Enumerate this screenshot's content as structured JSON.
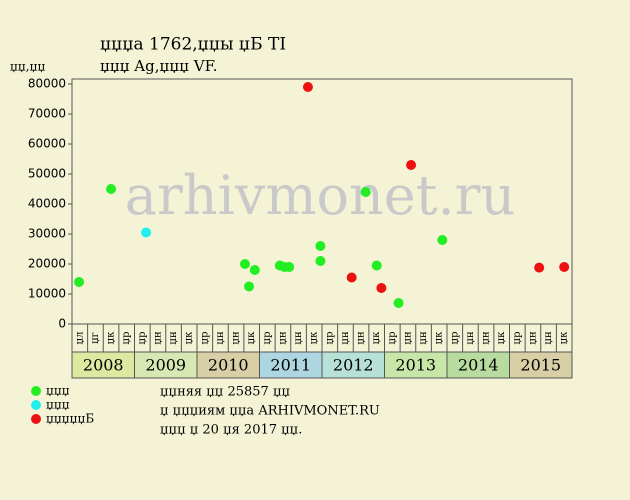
{
  "chart_data": {
    "type": "scatter",
    "title": "џџџа 1762,џџы џБ TI",
    "subtitle": "џџџ Ag,џџџ VF.",
    "y_label": "џџ,џџ",
    "watermark": "arhivmonet.ru",
    "ylim": [
      0,
      80000
    ],
    "yticks": [
      0,
      10000,
      20000,
      30000,
      40000,
      50000,
      60000,
      70000,
      80000
    ],
    "xlim": [
      0,
      32
    ],
    "quarters": [
      "џл",
      "џг",
      "џк",
      "џр",
      "џр",
      "џн",
      "џн",
      "џк",
      "џр",
      "џн",
      "џн",
      "џк",
      "џр",
      "џн",
      "џн",
      "џк",
      "џр",
      "џн",
      "џн",
      "џк",
      "џр",
      "џн",
      "џн",
      "џк",
      "џр",
      "џн",
      "џн",
      "џк",
      "џр",
      "џн",
      "џн",
      "џк"
    ],
    "years": [
      {
        "label": "2008",
        "color": "#dce9a0"
      },
      {
        "label": "2009",
        "color": "#d8e8b4"
      },
      {
        "label": "2010",
        "color": "#d9cfa6"
      },
      {
        "label": "2011",
        "color": "#add6e0"
      },
      {
        "label": "2012",
        "color": "#b7e0d6"
      },
      {
        "label": "2013",
        "color": "#c8e6a8"
      },
      {
        "label": "2014",
        "color": "#b8dca0"
      },
      {
        "label": "2015",
        "color": "#d9cfa6"
      }
    ],
    "series": [
      {
        "name": "џџџ",
        "color": "#22ee22",
        "x": [
          0.45,
          2.5,
          11.07,
          11.33,
          11.7,
          13.3,
          13.6,
          13.9,
          15.9,
          15.9,
          18.8,
          19.5,
          20.9,
          23.7
        ],
        "values": [
          14000,
          45000,
          20000,
          12500,
          18000,
          19500,
          19000,
          19000,
          26000,
          21000,
          44000,
          19500,
          7000,
          28000
        ]
      },
      {
        "name": "џџџ",
        "color": "#22eeee",
        "x": [
          4.74
        ],
        "values": [
          30500
        ]
      },
      {
        "name": "џџџџџБ",
        "color": "#ee1111",
        "x": [
          15.1,
          17.9,
          19.8,
          21.7,
          29.9,
          31.5
        ],
        "values": [
          79000,
          15500,
          12000,
          53000,
          18800,
          19000
        ]
      }
    ],
    "notes": [
      "џџняя џџ 25857 џџ",
      "џ џџџиям џџа ARHIVMONET.RU",
      "џџџ џ 20 џя 2017 џџ."
    ]
  }
}
